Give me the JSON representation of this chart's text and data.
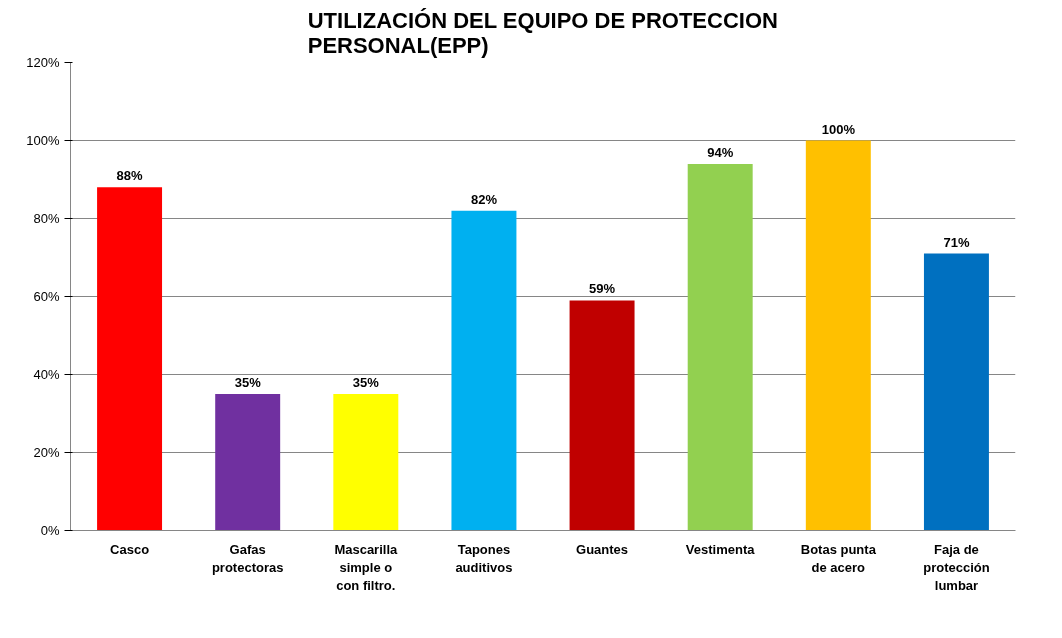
{
  "chart_data": {
    "type": "bar",
    "title": "UTILIZACIÓN DEL EQUIPO DE PROTECCION PERSONAL(EPP)",
    "categories": [
      "Casco",
      "Gafas protectoras",
      "Mascarilla simple o con filtro.",
      "Tapones auditivos",
      "Guantes",
      "Vestimenta",
      "Botas punta de acero",
      "Faja de protección lumbar"
    ],
    "values": [
      88,
      35,
      35,
      82,
      59,
      94,
      100,
      71
    ],
    "colors": [
      "#ff0000",
      "#7030a0",
      "#ffff00",
      "#00b0f0",
      "#c00000",
      "#92d050",
      "#ffc000",
      "#0070c0"
    ],
    "value_labels": [
      "88%",
      "35%",
      "35%",
      "82%",
      "59%",
      "94%",
      "100%",
      "71%"
    ],
    "ylim": [
      0,
      120
    ],
    "yticks": [
      {
        "value": 0,
        "label": "0%"
      },
      {
        "value": 20,
        "label": "20%"
      },
      {
        "value": 40,
        "label": "40%"
      },
      {
        "value": 60,
        "label": "60%"
      },
      {
        "value": 80,
        "label": "80%"
      },
      {
        "value": 100,
        "label": "100%"
      },
      {
        "value": 120,
        "label": "120%"
      }
    ],
    "grid": "y"
  }
}
